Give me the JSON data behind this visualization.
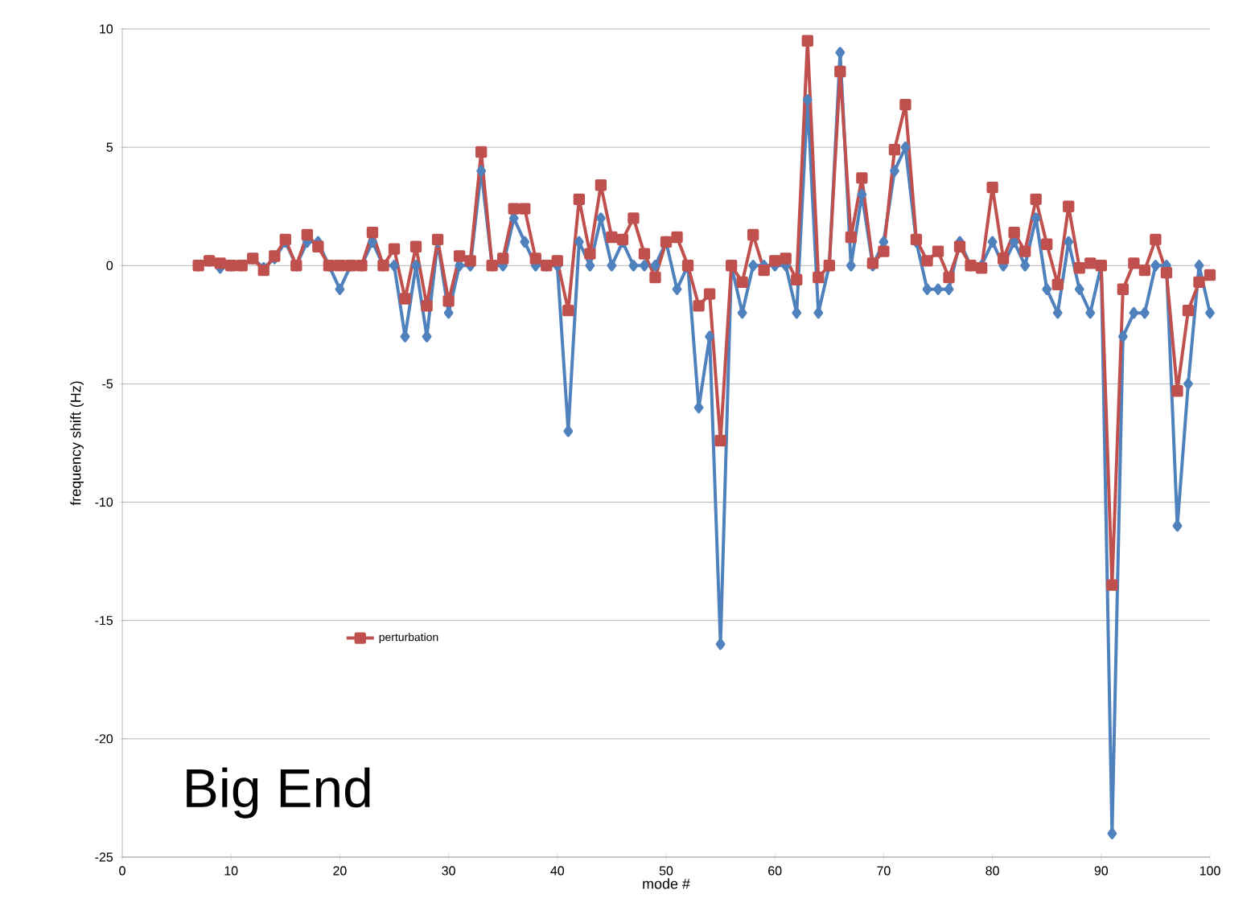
{
  "chart_data": {
    "type": "line",
    "xlabel": "mode #",
    "ylabel": "frequency shift (Hz)",
    "annotations": [
      "Big End"
    ],
    "xlim": [
      0,
      100
    ],
    "xticks": [
      0,
      10,
      20,
      30,
      40,
      50,
      60,
      70,
      80,
      90,
      100
    ],
    "ylim": [
      -25,
      10
    ],
    "yticks": [
      -25,
      -20,
      -15,
      -10,
      -5,
      0,
      5,
      10
    ],
    "grid": "y",
    "legend": "bottom left",
    "x": [
      7,
      8,
      9,
      10,
      11,
      12,
      13,
      14,
      15,
      16,
      17,
      18,
      19,
      20,
      21,
      22,
      23,
      24,
      25,
      26,
      27,
      28,
      29,
      30,
      31,
      32,
      33,
      34,
      35,
      36,
      37,
      38,
      39,
      40,
      41,
      42,
      43,
      44,
      45,
      46,
      47,
      48,
      49,
      50,
      51,
      52,
      53,
      54,
      55,
      56,
      57,
      58,
      59,
      60,
      61,
      62,
      63,
      64,
      65,
      66,
      67,
      68,
      69,
      70,
      71,
      72,
      73,
      74,
      75,
      76,
      77,
      78,
      79,
      80,
      81,
      82,
      83,
      84,
      85,
      86,
      87,
      88,
      89,
      90,
      91,
      92,
      93,
      94,
      95,
      96,
      97,
      98,
      99,
      100
    ],
    "series": [
      {
        "color": "#4f81bd",
        "marker": "diamond",
        "values": [
          0,
          0.2,
          -0.1,
          0,
          0,
          0.3,
          -0.1,
          0.3,
          1,
          0,
          1,
          1,
          0,
          -1,
          0,
          0,
          1,
          0,
          0,
          -3,
          0,
          -3,
          1,
          -2,
          0,
          0,
          4,
          0,
          0,
          2,
          1,
          0,
          0,
          0,
          -7,
          1,
          0,
          2,
          0,
          1,
          0,
          0,
          0,
          1,
          -1,
          0,
          -6,
          -3,
          -16,
          0,
          -2,
          0,
          0,
          0,
          0,
          -2,
          7,
          -2,
          0,
          9,
          0,
          3,
          0,
          1,
          4,
          5,
          1,
          -1,
          -1,
          -1,
          1,
          0,
          0,
          1,
          0,
          1,
          0,
          2,
          -1,
          -2,
          1,
          -1,
          -2,
          0,
          -24,
          -3,
          -2,
          -2,
          0,
          0,
          -11,
          -5,
          0,
          -2
        ]
      },
      {
        "name": "perturbation",
        "color": "#c0504d",
        "marker": "square",
        "values": [
          0,
          0.2,
          0.1,
          0,
          0,
          0.3,
          -0.2,
          0.4,
          1.1,
          0,
          1.3,
          0.8,
          0,
          0,
          0,
          0,
          1.4,
          0,
          0.7,
          -1.4,
          0.8,
          -1.7,
          1.1,
          -1.5,
          0.4,
          0.2,
          4.8,
          0,
          0.3,
          2.4,
          2.4,
          0.3,
          0,
          0.2,
          -1.9,
          2.8,
          0.5,
          3.4,
          1.2,
          1.1,
          2,
          0.5,
          -0.5,
          1,
          1.2,
          0,
          -1.7,
          -1.2,
          -7.4,
          0,
          -0.7,
          1.3,
          -0.2,
          0.2,
          0.3,
          -0.6,
          9.5,
          -0.5,
          0,
          8.2,
          1.2,
          3.7,
          0.1,
          0.6,
          4.9,
          6.8,
          1.1,
          0.2,
          0.6,
          -0.5,
          0.8,
          0,
          -0.1,
          3.3,
          0.3,
          1.4,
          0.6,
          2.8,
          0.9,
          -0.8,
          2.5,
          -0.1,
          0.1,
          0,
          -13.5,
          -1,
          0.1,
          -0.2,
          1.1,
          -0.3,
          -5.3,
          -1.9,
          -0.7,
          -0.4
        ]
      }
    ]
  }
}
